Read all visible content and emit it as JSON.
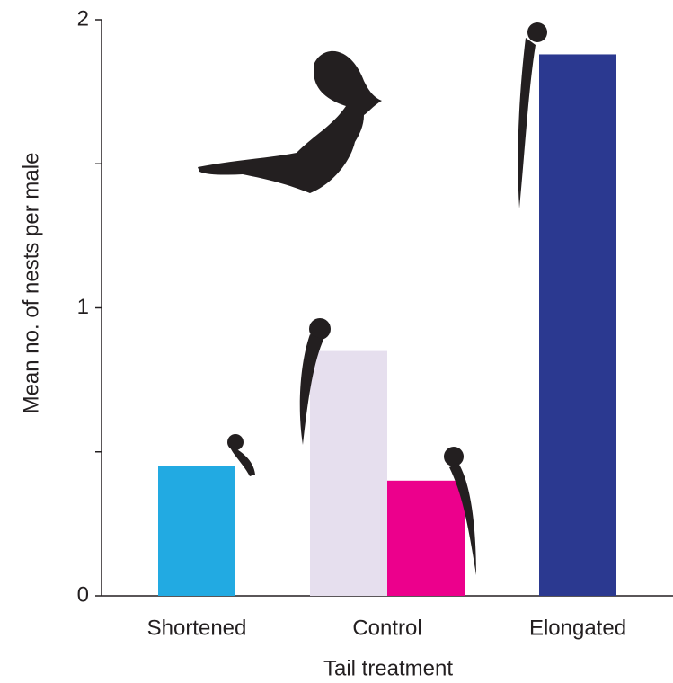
{
  "chart_data": {
    "type": "grouped-bar",
    "x_label": "Tail treatment",
    "y_label": "Mean no. of nests per male",
    "groups": [
      {
        "label": "Shortened",
        "values": [
          0.45
        ],
        "colors": [
          "#22aae2"
        ]
      },
      {
        "label": "Control",
        "values": [
          0.85,
          0.4
        ],
        "colors": [
          "#e6dfee",
          "#ec008c"
        ]
      },
      {
        "label": "Elongated",
        "values": [
          1.88
        ],
        "colors": [
          "#2b3990"
        ]
      }
    ],
    "ylim": [
      0,
      2
    ],
    "yticks": [
      0,
      1,
      2
    ],
    "yminor_ticks": [
      0.5,
      1.5
    ]
  }
}
